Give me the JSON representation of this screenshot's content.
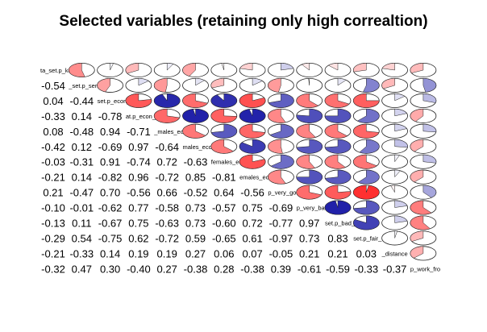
{
  "title": "Selected variables (retaining only high correaltion)",
  "chart_data": {
    "type": "heatmap",
    "subtype": "correlation-matrix",
    "layout": "mixed (upper: pie, lower: number)",
    "variables": [
      "ta_set.p_ko",
      "_set.p_senior_",
      "set.p_econ_",
      "at.p_econ_i",
      "_males_ec",
      "males_eco",
      "females_ec",
      "emales_ec",
      "p_very_goo",
      "p_very_ba",
      "set.p_bad_h",
      "set.p_fair_h",
      "_distance",
      "p_work_fro"
    ],
    "lower_values": [
      [],
      [
        -0.54
      ],
      [
        0.04,
        -0.44
      ],
      [
        -0.33,
        0.14,
        -0.78
      ],
      [
        0.08,
        -0.48,
        0.94,
        -0.71
      ],
      [
        -0.42,
        0.12,
        -0.69,
        0.97,
        -0.64
      ],
      [
        -0.03,
        -0.31,
        0.91,
        -0.74,
        0.72,
        -0.63
      ],
      [
        -0.21,
        0.14,
        -0.82,
        0.96,
        -0.72,
        0.85,
        -0.81
      ],
      [
        0.21,
        -0.47,
        0.7,
        -0.56,
        0.66,
        -0.52,
        0.64,
        -0.56
      ],
      [
        -0.1,
        -0.01,
        -0.62,
        0.77,
        -0.58,
        0.73,
        -0.57,
        0.75,
        -0.69
      ],
      [
        -0.13,
        0.11,
        -0.67,
        0.75,
        -0.63,
        0.73,
        -0.6,
        0.72,
        -0.77,
        0.97
      ],
      [
        -0.29,
        0.54,
        -0.75,
        0.62,
        -0.72,
        0.59,
        -0.65,
        0.61,
        -0.97,
        0.73,
        0.83
      ],
      [
        -0.21,
        -0.33,
        0.14,
        0.19,
        0.19,
        0.27,
        0.06,
        0.07,
        -0.05,
        0.21,
        0.21,
        0.03
      ],
      [
        -0.32,
        0.47,
        0.3,
        -0.4,
        0.27,
        -0.38,
        0.28,
        -0.38,
        0.39,
        -0.61,
        -0.59,
        -0.33,
        -0.37
      ]
    ],
    "colors": {
      "positive": "#1a1aa6",
      "negative": "#ff2a2a",
      "neutral": "#ffffff"
    },
    "grid": false,
    "legend": "none"
  }
}
